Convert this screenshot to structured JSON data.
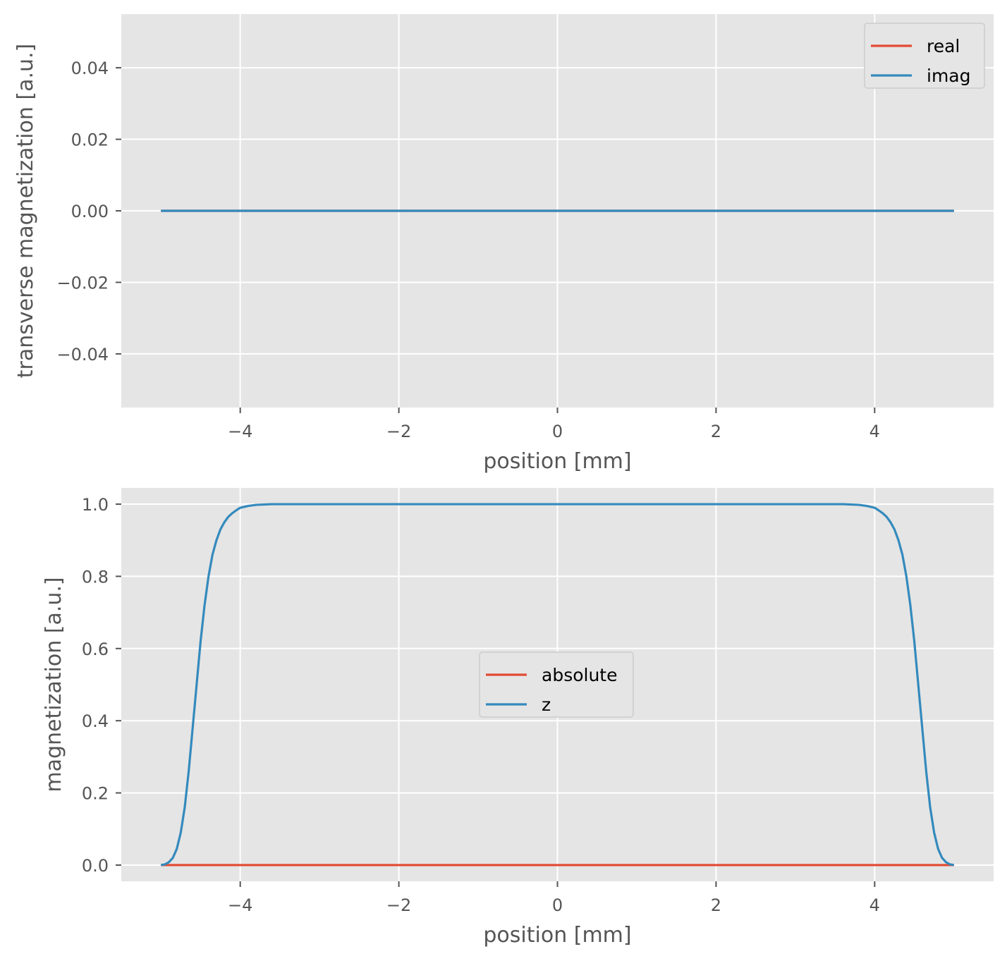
{
  "chart_data": [
    {
      "type": "line",
      "xlabel": "position [mm]",
      "ylabel": "transverse magnetization [a.u.]",
      "xlim": [
        -5.5,
        5.5
      ],
      "ylim": [
        -0.055,
        0.055
      ],
      "xticks": [
        -4,
        -2,
        0,
        2,
        4
      ],
      "xtick_labels": [
        "−4",
        "−2",
        "0",
        "2",
        "4"
      ],
      "yticks": [
        0.04,
        0.02,
        0.0,
        -0.02,
        -0.04
      ],
      "ytick_labels": [
        "0.04",
        "0.02",
        "0.00",
        "−0.02",
        "−0.04"
      ],
      "grid": true,
      "legend": {
        "position": "upper right",
        "entries": [
          "real",
          "imag"
        ]
      },
      "series": [
        {
          "name": "real",
          "color": "#E24A33",
          "x": [
            -5,
            5
          ],
          "y": [
            0,
            0
          ]
        },
        {
          "name": "imag",
          "color": "#348ABD",
          "x": [
            -5,
            5
          ],
          "y": [
            0,
            0
          ]
        }
      ]
    },
    {
      "type": "line",
      "xlabel": "position [mm]",
      "ylabel": "magnetization [a.u.]",
      "xlim": [
        -5.5,
        5.5
      ],
      "ylim": [
        -0.045,
        1.045
      ],
      "xticks": [
        -4,
        -2,
        0,
        2,
        4
      ],
      "xtick_labels": [
        "−4",
        "−2",
        "0",
        "2",
        "4"
      ],
      "yticks": [
        1.0,
        0.8,
        0.6,
        0.4,
        0.2,
        0.0
      ],
      "ytick_labels": [
        "1.0",
        "0.8",
        "0.6",
        "0.4",
        "0.2",
        "0.0"
      ],
      "grid": true,
      "legend": {
        "position": "center",
        "entries": [
          "absolute",
          "z"
        ]
      },
      "series": [
        {
          "name": "absolute",
          "color": "#E24A33",
          "x": [
            -5,
            5
          ],
          "y": [
            0,
            0
          ]
        },
        {
          "name": "z",
          "color": "#348ABD",
          "x": [
            -5.0,
            -4.95,
            -4.9,
            -4.85,
            -4.8,
            -4.75,
            -4.7,
            -4.65,
            -4.6,
            -4.55,
            -4.5,
            -4.45,
            -4.4,
            -4.35,
            -4.3,
            -4.25,
            -4.2,
            -4.15,
            -4.1,
            -4.05,
            -4.0,
            -3.9,
            -3.8,
            -3.7,
            -3.6,
            -3.5,
            -3.25,
            -3.0,
            -2.0,
            -1.0,
            0.0,
            1.0,
            2.0,
            3.0,
            3.25,
            3.5,
            3.6,
            3.7,
            3.8,
            3.9,
            4.0,
            4.05,
            4.1,
            4.15,
            4.2,
            4.25,
            4.3,
            4.35,
            4.4,
            4.45,
            4.5,
            4.55,
            4.6,
            4.65,
            4.7,
            4.75,
            4.8,
            4.85,
            4.9,
            4.95,
            5.0
          ],
          "y": [
            0.0,
            0.002,
            0.008,
            0.02,
            0.045,
            0.09,
            0.16,
            0.26,
            0.38,
            0.5,
            0.62,
            0.72,
            0.8,
            0.86,
            0.9,
            0.93,
            0.95,
            0.965,
            0.975,
            0.983,
            0.99,
            0.995,
            0.998,
            0.999,
            1.0,
            1.0,
            1.0,
            1.0,
            1.0,
            1.0,
            1.0,
            1.0,
            1.0,
            1.0,
            1.0,
            1.0,
            1.0,
            0.999,
            0.998,
            0.995,
            0.99,
            0.983,
            0.975,
            0.965,
            0.95,
            0.93,
            0.9,
            0.86,
            0.8,
            0.72,
            0.62,
            0.5,
            0.38,
            0.26,
            0.16,
            0.09,
            0.045,
            0.02,
            0.008,
            0.002,
            0.0
          ]
        }
      ]
    }
  ]
}
